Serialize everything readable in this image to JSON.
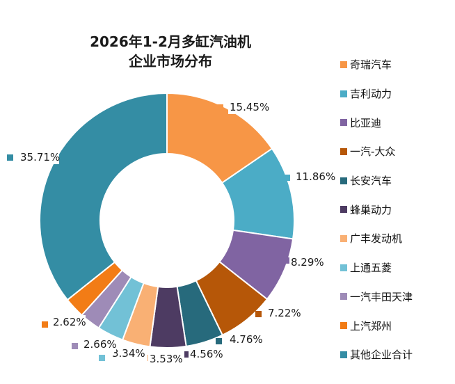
{
  "colors": {
    "background": "#ffffff",
    "label_box": "#ffffff"
  },
  "chart_data": {
    "type": "pie",
    "variant": "donut",
    "title": "2026年1-2月多缸汽油机",
    "subtitle": "企业市场分布",
    "legend_placement": "right",
    "unit": "%",
    "slices": [
      {
        "label": "奇瑞汽车",
        "value": 15.45,
        "display": "15.45%",
        "color": "#F79646"
      },
      {
        "label": "吉利动力",
        "value": 11.86,
        "display": "11.86%",
        "color": "#4BACC6"
      },
      {
        "label": "比亚迪",
        "value": 8.29,
        "display": "8.29%",
        "color": "#8064A2"
      },
      {
        "label": "一汽-大众",
        "value": 7.22,
        "display": "7.22%",
        "color": "#B65708"
      },
      {
        "label": "长安汽车",
        "value": 4.76,
        "display": "4.76%",
        "color": "#276A7C"
      },
      {
        "label": "蜂巢动力",
        "value": 4.56,
        "display": "4.56%",
        "color": "#4D3B62"
      },
      {
        "label": "广丰发动机",
        "value": 3.53,
        "display": "3.53%",
        "color": "#F9B074"
      },
      {
        "label": "上通五菱",
        "value": 3.34,
        "display": "3.34%",
        "color": "#72C1D6"
      },
      {
        "label": "一汽丰田天津",
        "value": 2.66,
        "display": "2.66%",
        "color": "#9E8BB7"
      },
      {
        "label": "上汽郑州",
        "value": 2.62,
        "display": "2.62%",
        "color": "#F27C16"
      },
      {
        "label": "其他企业合计",
        "value": 35.71,
        "display": "35.71%",
        "color": "#348DA4"
      }
    ]
  }
}
